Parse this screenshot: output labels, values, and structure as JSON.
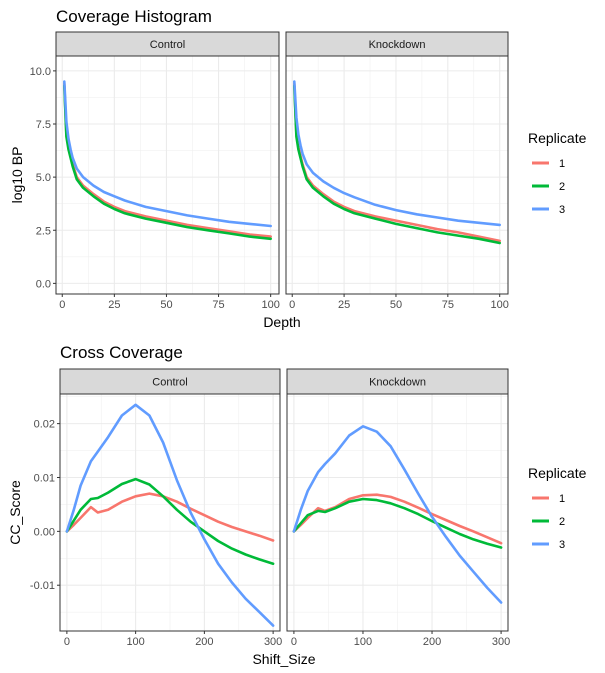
{
  "chart_data": [
    {
      "type": "line",
      "title": "Coverage Histogram",
      "xlabel": "Depth",
      "ylabel": "log10 BP",
      "xlim": [
        -3,
        104
      ],
      "ylim": [
        -0.5,
        10.7
      ],
      "xticks": [
        0,
        25,
        50,
        75,
        100
      ],
      "yticks": [
        0.0,
        2.5,
        5.0,
        7.5,
        10.0
      ],
      "ytick_labels": [
        "0.0",
        "2.5",
        "5.0",
        "7.5",
        "10.0"
      ],
      "facets": [
        "Control",
        "Knockdown"
      ],
      "legend": {
        "title": "Replicate",
        "position": "right"
      },
      "x": [
        1,
        2,
        3,
        4,
        5,
        7,
        10,
        15,
        20,
        25,
        30,
        40,
        50,
        60,
        70,
        80,
        90,
        100
      ],
      "panels": [
        {
          "facet": "Control",
          "series": [
            {
              "name": "1",
              "color": "#F8766D",
              "values": [
                9.4,
                7.0,
                6.4,
                6.0,
                5.6,
                5.0,
                4.6,
                4.2,
                3.85,
                3.6,
                3.4,
                3.15,
                2.95,
                2.75,
                2.6,
                2.45,
                2.3,
                2.2
              ]
            },
            {
              "name": "2",
              "color": "#00BA38",
              "values": [
                9.3,
                6.9,
                6.3,
                5.9,
                5.5,
                4.9,
                4.5,
                4.1,
                3.75,
                3.5,
                3.3,
                3.05,
                2.85,
                2.65,
                2.5,
                2.35,
                2.2,
                2.1
              ]
            },
            {
              "name": "3",
              "color": "#619CFF",
              "values": [
                9.5,
                7.6,
                6.8,
                6.3,
                5.9,
                5.4,
                5.0,
                4.6,
                4.3,
                4.1,
                3.9,
                3.6,
                3.4,
                3.2,
                3.05,
                2.9,
                2.8,
                2.7
              ]
            }
          ]
        },
        {
          "facet": "Knockdown",
          "series": [
            {
              "name": "1",
              "color": "#F8766D",
              "values": [
                9.4,
                7.0,
                6.4,
                6.0,
                5.6,
                5.0,
                4.6,
                4.2,
                3.85,
                3.6,
                3.4,
                3.15,
                2.95,
                2.75,
                2.55,
                2.4,
                2.2,
                2.0
              ]
            },
            {
              "name": "2",
              "color": "#00BA38",
              "values": [
                9.3,
                6.9,
                6.3,
                5.9,
                5.5,
                4.9,
                4.5,
                4.1,
                3.75,
                3.5,
                3.3,
                3.05,
                2.8,
                2.6,
                2.4,
                2.25,
                2.1,
                1.9
              ]
            },
            {
              "name": "3",
              "color": "#619CFF",
              "values": [
                9.5,
                7.8,
                7.0,
                6.5,
                6.1,
                5.6,
                5.2,
                4.8,
                4.5,
                4.25,
                4.05,
                3.7,
                3.45,
                3.25,
                3.1,
                2.95,
                2.85,
                2.75
              ]
            }
          ]
        }
      ]
    },
    {
      "type": "line",
      "title": "Cross Coverage",
      "xlabel": "Shift_Size",
      "ylabel": "CC_Score",
      "xlim": [
        -10,
        310
      ],
      "ylim": [
        -0.0185,
        0.0255
      ],
      "xticks": [
        0,
        100,
        200,
        300
      ],
      "yticks": [
        -0.01,
        0.0,
        0.01,
        0.02
      ],
      "ytick_labels": [
        "-0.01",
        "0.00",
        "0.01",
        "0.02"
      ],
      "facets": [
        "Control",
        "Knockdown"
      ],
      "legend": {
        "title": "Replicate",
        "position": "right"
      },
      "x": [
        0,
        10,
        20,
        35,
        45,
        60,
        80,
        100,
        120,
        140,
        160,
        180,
        200,
        220,
        240,
        260,
        280,
        300
      ],
      "panels": [
        {
          "facet": "Control",
          "series": [
            {
              "name": "1",
              "color": "#F8766D",
              "values": [
                0.0,
                0.0012,
                0.0025,
                0.0045,
                0.0035,
                0.004,
                0.0055,
                0.0065,
                0.007,
                0.0065,
                0.0055,
                0.0042,
                0.003,
                0.0018,
                0.0008,
                0.0,
                -0.0008,
                -0.0017
              ]
            },
            {
              "name": "2",
              "color": "#00BA38",
              "values": [
                0.0,
                0.002,
                0.004,
                0.006,
                0.0062,
                0.0072,
                0.0088,
                0.0097,
                0.0087,
                0.0065,
                0.004,
                0.0018,
                0.0,
                -0.0018,
                -0.0032,
                -0.0043,
                -0.0052,
                -0.006
              ]
            },
            {
              "name": "3",
              "color": "#619CFF",
              "values": [
                0.0,
                0.004,
                0.0085,
                0.013,
                0.0148,
                0.0175,
                0.0215,
                0.0235,
                0.0215,
                0.0165,
                0.0095,
                0.0035,
                -0.0015,
                -0.006,
                -0.0095,
                -0.0125,
                -0.015,
                -0.0175
              ]
            }
          ]
        },
        {
          "facet": "Knockdown",
          "series": [
            {
              "name": "1",
              "color": "#F8766D",
              "values": [
                0.0,
                0.0012,
                0.0025,
                0.0043,
                0.0038,
                0.0045,
                0.006,
                0.0067,
                0.0068,
                0.0064,
                0.0055,
                0.0044,
                0.0032,
                0.0021,
                0.001,
                0.0,
                -0.0011,
                -0.0022
              ]
            },
            {
              "name": "2",
              "color": "#00BA38",
              "values": [
                0.0,
                0.0015,
                0.003,
                0.0038,
                0.0036,
                0.0043,
                0.0055,
                0.006,
                0.0058,
                0.0052,
                0.0043,
                0.0032,
                0.0019,
                0.0007,
                -0.0005,
                -0.0015,
                -0.0023,
                -0.003
              ]
            },
            {
              "name": "3",
              "color": "#619CFF",
              "values": [
                0.0,
                0.004,
                0.0075,
                0.011,
                0.0125,
                0.0145,
                0.0178,
                0.0195,
                0.0185,
                0.0158,
                0.0115,
                0.007,
                0.0027,
                -0.001,
                -0.0045,
                -0.0075,
                -0.0105,
                -0.0132
              ]
            }
          ]
        }
      ]
    }
  ]
}
